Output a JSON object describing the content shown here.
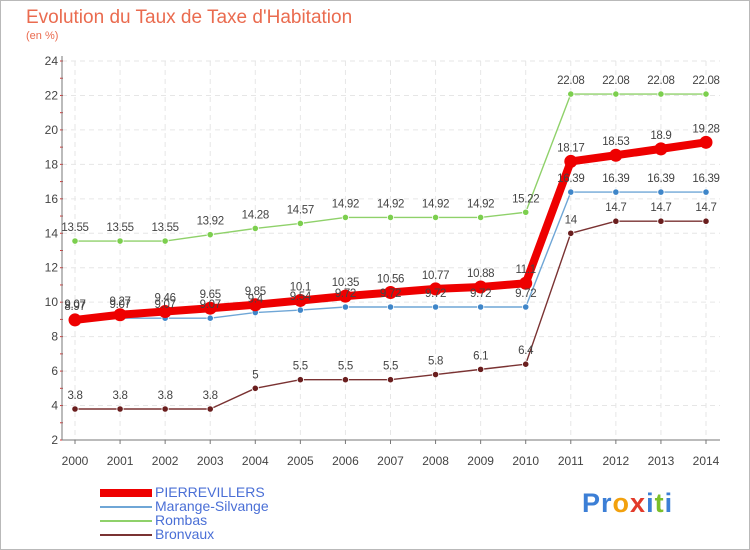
{
  "title": "Evolution du Taux de Taxe d'Habitation",
  "subtitle": "(en %)",
  "logo": {
    "letters": [
      {
        "ch": "P",
        "color": "#3c7fd6"
      },
      {
        "ch": "r",
        "color": "#3c7fd6"
      },
      {
        "ch": "o",
        "color": "#f2a10e"
      },
      {
        "ch": "x",
        "color": "#e23a2a"
      },
      {
        "ch": "i",
        "color": "#3c7fd6"
      },
      {
        "ch": "t",
        "color": "#7bbf2a"
      },
      {
        "ch": "i",
        "color": "#3c7fd6"
      }
    ]
  },
  "chart_data": {
    "type": "line",
    "x": [
      "2000",
      "2001",
      "2002",
      "2003",
      "2004",
      "2005",
      "2006",
      "2007",
      "2008",
      "2009",
      "2010",
      "2011",
      "2012",
      "2013",
      "2014"
    ],
    "ylim": [
      2,
      24
    ],
    "yticks": [
      2,
      4,
      6,
      8,
      10,
      12,
      14,
      16,
      18,
      20,
      22,
      24
    ],
    "grid": true,
    "legend": "bottom-left",
    "series": [
      {
        "name": "Rombas",
        "color": "#8fd16a",
        "marker": "#7ccf4e",
        "values": [
          13.55,
          13.55,
          13.55,
          13.92,
          14.28,
          14.57,
          14.92,
          14.92,
          14.92,
          14.92,
          15.22,
          22.08,
          22.08,
          22.08,
          22.08
        ],
        "labels": [
          "13.55",
          "13.55",
          "13.55",
          "13.92",
          "14.28",
          "14.57",
          "14.92",
          "14.92",
          "14.92",
          "14.92",
          "15.22",
          "22.08",
          "22.08",
          "22.08",
          "22.08"
        ]
      },
      {
        "name": "Marange-Silvange",
        "color": "#6fa6d6",
        "marker": "#3f86c9",
        "values": [
          9.07,
          9.07,
          9.07,
          9.07,
          9.4,
          9.54,
          9.72,
          9.72,
          9.72,
          9.72,
          9.72,
          16.39,
          16.39,
          16.39,
          16.39
        ],
        "labels": [
          "9.07",
          "9.07",
          "9.07",
          "9.07",
          "9.4",
          "9.54",
          "9.72",
          "9.72",
          "9.72",
          "9.72",
          "9.72",
          "16.39",
          "16.39",
          "16.39",
          "16.39"
        ]
      },
      {
        "name": "Bronvaux",
        "color": "#7a3232",
        "marker": "#6a1e1e",
        "values": [
          3.8,
          3.8,
          3.8,
          3.8,
          5,
          5.5,
          5.5,
          5.5,
          5.8,
          6.1,
          6.4,
          14,
          14.7,
          14.7,
          14.7
        ],
        "labels": [
          "3.8",
          "3.8",
          "3.8",
          "3.8",
          "5",
          "5.5",
          "5.5",
          "5.5",
          "5.8",
          "6.1",
          "6.4",
          "14",
          "14.7",
          "14.7",
          "14.7"
        ]
      },
      {
        "name": "PIERREVILLERS",
        "color": "#ee0000",
        "marker": "#ee0000",
        "values": [
          8.97,
          9.27,
          9.46,
          9.65,
          9.85,
          10.1,
          10.35,
          10.56,
          10.77,
          10.88,
          11.1,
          18.17,
          18.53,
          18.9,
          19.28
        ],
        "labels": [
          "8.97",
          "9.27",
          "9.46",
          "9.65",
          "9.85",
          "10.1",
          "10.35",
          "10.56",
          "10.77",
          "10.88",
          "11.1",
          "18.17",
          "18.53",
          "18.9",
          "19.28"
        ]
      }
    ],
    "legend_order": [
      "PIERREVILLERS",
      "Marange-Silvange",
      "Rombas",
      "Bronvaux"
    ]
  }
}
